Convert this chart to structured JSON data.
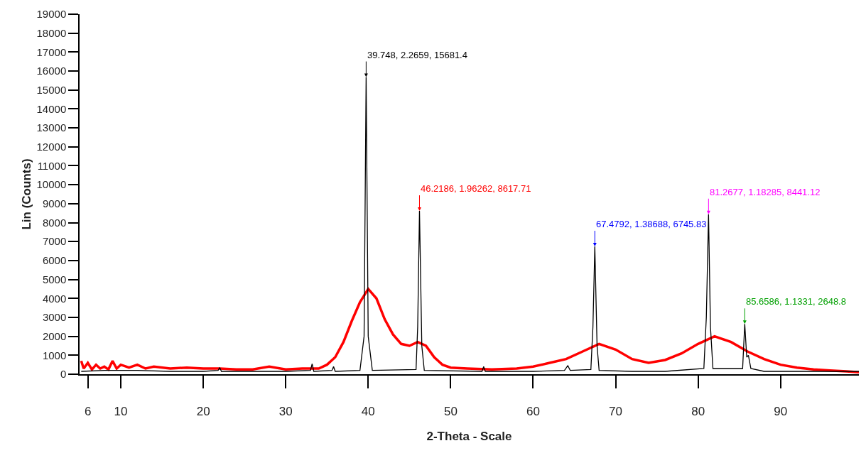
{
  "chart_data": {
    "type": "line",
    "xlabel": "2-Theta - Scale",
    "ylabel": "Lin (Counts)",
    "xlim": [
      5,
      99.5
    ],
    "xticks": [
      6,
      10,
      20,
      30,
      40,
      50,
      60,
      70,
      80,
      90
    ],
    "ylim": [
      0,
      19000
    ],
    "yticks": [
      0,
      1000,
      2000,
      3000,
      4000,
      5000,
      6000,
      7000,
      8000,
      9000,
      10000,
      11000,
      12000,
      13000,
      14000,
      15000,
      16000,
      17000,
      18000,
      19000
    ],
    "marker": "none",
    "line_style": "solid",
    "series": [
      {
        "color": "#ff0000",
        "x": [
          5.2,
          5.5,
          6,
          6.5,
          7,
          7.5,
          8,
          8.5,
          9,
          9.5,
          10,
          11,
          12,
          13,
          14,
          16,
          18,
          20,
          22,
          24,
          26,
          28,
          30,
          32,
          34,
          35,
          36,
          37,
          38,
          39,
          40,
          41,
          42,
          43,
          44,
          45,
          46,
          47,
          48,
          49,
          50,
          52,
          55,
          58,
          60,
          62,
          64,
          66,
          68,
          70,
          72,
          74,
          76,
          78,
          80,
          82,
          84,
          86,
          88,
          90,
          92,
          94,
          96,
          98,
          99.5
        ],
        "values": [
          700,
          300,
          600,
          250,
          500,
          300,
          400,
          250,
          700,
          300,
          500,
          350,
          500,
          300,
          400,
          300,
          350,
          300,
          300,
          250,
          250,
          400,
          250,
          300,
          300,
          500,
          900,
          1700,
          2800,
          3800,
          4500,
          4000,
          2900,
          2100,
          1600,
          1500,
          1700,
          1500,
          900,
          500,
          350,
          300,
          250,
          300,
          400,
          600,
          800,
          1200,
          1600,
          1300,
          800,
          600,
          750,
          1100,
          1600,
          2000,
          1700,
          1200,
          800,
          500,
          350,
          250,
          200,
          150,
          100
        ]
      },
      {
        "color": "#000000",
        "x": [
          5.2,
          8,
          12,
          16,
          20,
          21.8,
          22,
          22.2,
          26,
          30,
          33,
          33.2,
          33.4,
          35.6,
          35.8,
          36,
          39,
          39.5,
          39.748,
          40,
          40.5,
          45.8,
          46,
          46.2186,
          46.5,
          46.8,
          53.8,
          54,
          54.2,
          60,
          63.8,
          64.2,
          64.5,
          67,
          67.25,
          67.4792,
          67.75,
          68,
          72,
          76,
          80.7,
          81,
          81.2677,
          81.5,
          81.8,
          85.4,
          85.6586,
          85.9,
          86.1,
          86.4,
          88,
          92,
          96,
          99.5
        ],
        "values": [
          150,
          200,
          200,
          150,
          150,
          200,
          350,
          150,
          150,
          150,
          200,
          550,
          150,
          200,
          400,
          150,
          200,
          2000,
          15681.4,
          2000,
          200,
          250,
          2500,
          8617.71,
          1500,
          200,
          150,
          400,
          150,
          150,
          200,
          450,
          200,
          250,
          2500,
          6745.83,
          1500,
          200,
          150,
          150,
          300,
          3000,
          8441.12,
          2500,
          300,
          300,
          2648.8,
          900,
          1000,
          300,
          150,
          150,
          150,
          150
        ]
      }
    ],
    "annotations": [
      {
        "text": "39.748, 2.2659, 15681.4",
        "x": 39.748,
        "y": 15681.4
      },
      {
        "text": "46.2186, 1.96262, 8617.71",
        "x": 46.2186,
        "y": 8617.71
      },
      {
        "text": "67.4792, 1.38688, 6745.83",
        "x": 67.4792,
        "y": 6745.83
      },
      {
        "text": "81.2677, 1.18285, 8441.12",
        "x": 81.2677,
        "y": 8441.12
      },
      {
        "text": "85.6586, 1.1331, 2648.8",
        "x": 85.6586,
        "y": 2648.8
      }
    ]
  }
}
